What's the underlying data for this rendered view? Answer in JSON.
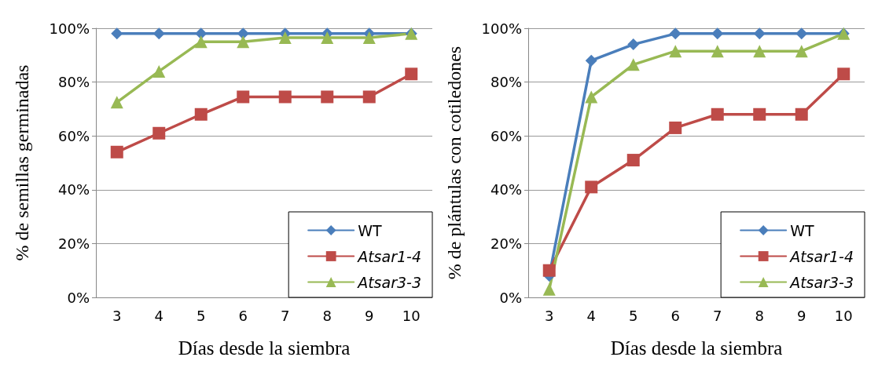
{
  "chart_data": [
    {
      "type": "line",
      "xlabel": "Días desde la siembra",
      "ylabel": "% de semillas germinadas",
      "categories": [
        "3",
        "4",
        "5",
        "6",
        "7",
        "8",
        "9",
        "10"
      ],
      "series": [
        {
          "name": "WT",
          "color": "#4a7ebb",
          "marker": "diamond",
          "values": [
            98,
            98,
            98,
            98,
            98,
            98,
            98,
            98
          ]
        },
        {
          "name": "Atsar1-4",
          "color": "#be4b48",
          "marker": "square",
          "values": [
            54,
            61,
            68,
            74.5,
            74.5,
            74.5,
            74.5,
            83
          ]
        },
        {
          "name": "Atsar3-3",
          "color": "#98b954",
          "marker": "triangle",
          "values": [
            72.5,
            84,
            95,
            95,
            96.5,
            96.5,
            96.5,
            98
          ]
        }
      ],
      "ylim": [
        0,
        100
      ],
      "yticks": [
        {
          "value": 0,
          "label": "0%"
        },
        {
          "value": 20,
          "label": "20%"
        },
        {
          "value": 40,
          "label": "40%"
        },
        {
          "value": 60,
          "label": "60%"
        },
        {
          "value": 80,
          "label": "80%"
        },
        {
          "value": 100,
          "label": "100%"
        }
      ],
      "grid": "y",
      "legend": "bottom right",
      "line_style": "solid"
    },
    {
      "type": "line",
      "xlabel": "Días desde la siembra",
      "ylabel": "% de plántulas con cotiledones",
      "categories": [
        "3",
        "4",
        "5",
        "6",
        "7",
        "8",
        "9",
        "10"
      ],
      "series": [
        {
          "name": "WT",
          "color": "#4a7ebb",
          "marker": "diamond",
          "values": [
            8,
            88,
            94,
            98,
            98,
            98,
            98,
            98
          ]
        },
        {
          "name": "Atsar1-4",
          "color": "#be4b48",
          "marker": "square",
          "values": [
            10,
            41,
            51,
            63,
            68,
            68,
            68,
            83
          ]
        },
        {
          "name": "Atsar3-3",
          "color": "#98b954",
          "marker": "triangle",
          "values": [
            3,
            74.5,
            86.5,
            91.5,
            91.5,
            91.5,
            91.5,
            98
          ]
        }
      ],
      "ylim": [
        0,
        100
      ],
      "yticks": [
        {
          "value": 0,
          "label": "0%"
        },
        {
          "value": 20,
          "label": "20%"
        },
        {
          "value": 40,
          "label": "40%"
        },
        {
          "value": 60,
          "label": "60%"
        },
        {
          "value": 80,
          "label": "80%"
        },
        {
          "value": 100,
          "label": "100%"
        }
      ],
      "grid": "y",
      "legend": "bottom right",
      "line_style": "solid"
    }
  ]
}
